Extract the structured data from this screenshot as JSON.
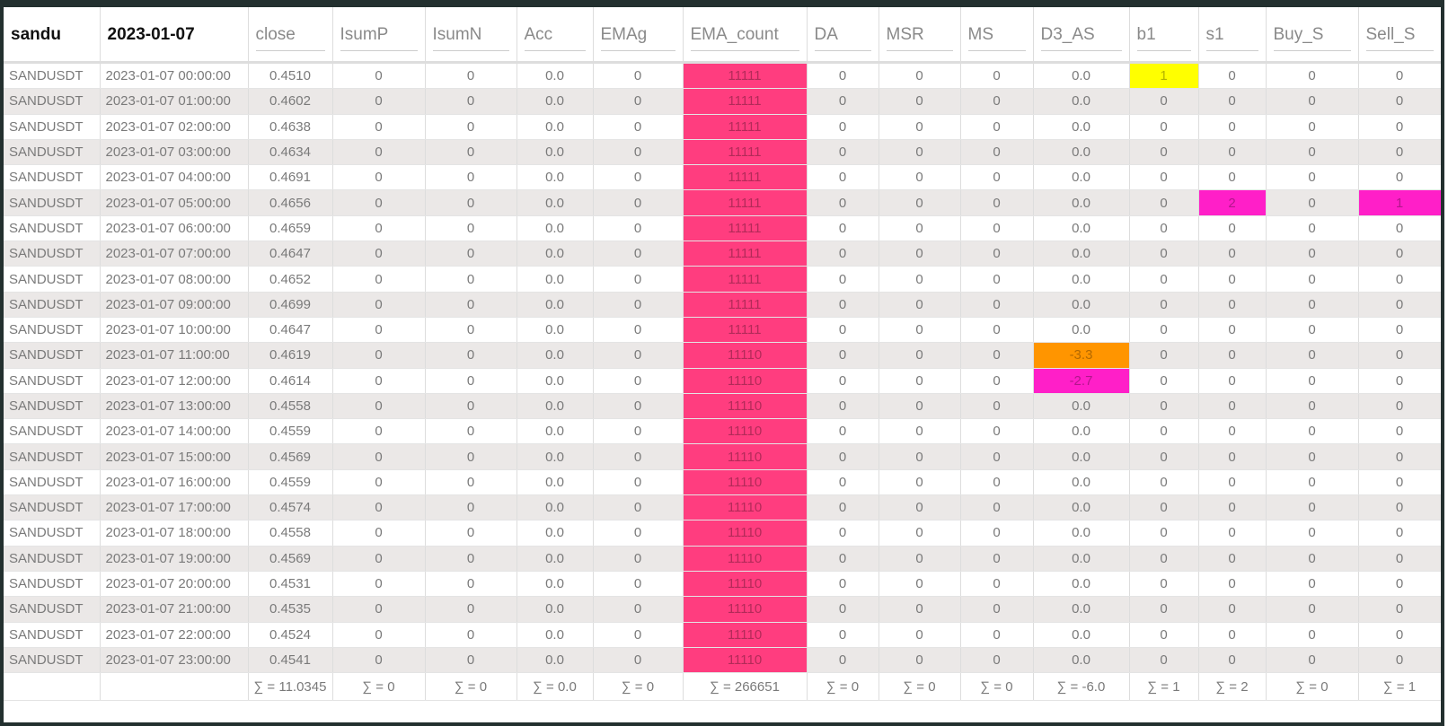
{
  "table": {
    "header": [
      "sandu",
      "2023-01-07",
      "close",
      "IsumP",
      "IsumN",
      "Acc",
      "EMAg",
      "EMA_count",
      "DA",
      "MSR",
      "MS",
      "D3_AS",
      "b1",
      "s1",
      "Buy_S",
      "Sell_S"
    ],
    "rows": [
      [
        "SANDUSDT",
        "2023-01-07 00:00:00",
        "0.4510",
        "0",
        "0",
        "0.0",
        "0",
        "11111",
        "0",
        "0",
        "0",
        "0.0",
        "1",
        "0",
        "0",
        "0"
      ],
      [
        "SANDUSDT",
        "2023-01-07 01:00:00",
        "0.4602",
        "0",
        "0",
        "0.0",
        "0",
        "11111",
        "0",
        "0",
        "0",
        "0.0",
        "0",
        "0",
        "0",
        "0"
      ],
      [
        "SANDUSDT",
        "2023-01-07 02:00:00",
        "0.4638",
        "0",
        "0",
        "0.0",
        "0",
        "11111",
        "0",
        "0",
        "0",
        "0.0",
        "0",
        "0",
        "0",
        "0"
      ],
      [
        "SANDUSDT",
        "2023-01-07 03:00:00",
        "0.4634",
        "0",
        "0",
        "0.0",
        "0",
        "11111",
        "0",
        "0",
        "0",
        "0.0",
        "0",
        "0",
        "0",
        "0"
      ],
      [
        "SANDUSDT",
        "2023-01-07 04:00:00",
        "0.4691",
        "0",
        "0",
        "0.0",
        "0",
        "11111",
        "0",
        "0",
        "0",
        "0.0",
        "0",
        "0",
        "0",
        "0"
      ],
      [
        "SANDUSDT",
        "2023-01-07 05:00:00",
        "0.4656",
        "0",
        "0",
        "0.0",
        "0",
        "11111",
        "0",
        "0",
        "0",
        "0.0",
        "0",
        "2",
        "0",
        "1"
      ],
      [
        "SANDUSDT",
        "2023-01-07 06:00:00",
        "0.4659",
        "0",
        "0",
        "0.0",
        "0",
        "11111",
        "0",
        "0",
        "0",
        "0.0",
        "0",
        "0",
        "0",
        "0"
      ],
      [
        "SANDUSDT",
        "2023-01-07 07:00:00",
        "0.4647",
        "0",
        "0",
        "0.0",
        "0",
        "11111",
        "0",
        "0",
        "0",
        "0.0",
        "0",
        "0",
        "0",
        "0"
      ],
      [
        "SANDUSDT",
        "2023-01-07 08:00:00",
        "0.4652",
        "0",
        "0",
        "0.0",
        "0",
        "11111",
        "0",
        "0",
        "0",
        "0.0",
        "0",
        "0",
        "0",
        "0"
      ],
      [
        "SANDUSDT",
        "2023-01-07 09:00:00",
        "0.4699",
        "0",
        "0",
        "0.0",
        "0",
        "11111",
        "0",
        "0",
        "0",
        "0.0",
        "0",
        "0",
        "0",
        "0"
      ],
      [
        "SANDUSDT",
        "2023-01-07 10:00:00",
        "0.4647",
        "0",
        "0",
        "0.0",
        "0",
        "11111",
        "0",
        "0",
        "0",
        "0.0",
        "0",
        "0",
        "0",
        "0"
      ],
      [
        "SANDUSDT",
        "2023-01-07 11:00:00",
        "0.4619",
        "0",
        "0",
        "0.0",
        "0",
        "11110",
        "0",
        "0",
        "0",
        "-3.3",
        "0",
        "0",
        "0",
        "0"
      ],
      [
        "SANDUSDT",
        "2023-01-07 12:00:00",
        "0.4614",
        "0",
        "0",
        "0.0",
        "0",
        "11110",
        "0",
        "0",
        "0",
        "-2.7",
        "0",
        "0",
        "0",
        "0"
      ],
      [
        "SANDUSDT",
        "2023-01-07 13:00:00",
        "0.4558",
        "0",
        "0",
        "0.0",
        "0",
        "11110",
        "0",
        "0",
        "0",
        "0.0",
        "0",
        "0",
        "0",
        "0"
      ],
      [
        "SANDUSDT",
        "2023-01-07 14:00:00",
        "0.4559",
        "0",
        "0",
        "0.0",
        "0",
        "11110",
        "0",
        "0",
        "0",
        "0.0",
        "0",
        "0",
        "0",
        "0"
      ],
      [
        "SANDUSDT",
        "2023-01-07 15:00:00",
        "0.4569",
        "0",
        "0",
        "0.0",
        "0",
        "11110",
        "0",
        "0",
        "0",
        "0.0",
        "0",
        "0",
        "0",
        "0"
      ],
      [
        "SANDUSDT",
        "2023-01-07 16:00:00",
        "0.4559",
        "0",
        "0",
        "0.0",
        "0",
        "11110",
        "0",
        "0",
        "0",
        "0.0",
        "0",
        "0",
        "0",
        "0"
      ],
      [
        "SANDUSDT",
        "2023-01-07 17:00:00",
        "0.4574",
        "0",
        "0",
        "0.0",
        "0",
        "11110",
        "0",
        "0",
        "0",
        "0.0",
        "0",
        "0",
        "0",
        "0"
      ],
      [
        "SANDUSDT",
        "2023-01-07 18:00:00",
        "0.4558",
        "0",
        "0",
        "0.0",
        "0",
        "11110",
        "0",
        "0",
        "0",
        "0.0",
        "0",
        "0",
        "0",
        "0"
      ],
      [
        "SANDUSDT",
        "2023-01-07 19:00:00",
        "0.4569",
        "0",
        "0",
        "0.0",
        "0",
        "11110",
        "0",
        "0",
        "0",
        "0.0",
        "0",
        "0",
        "0",
        "0"
      ],
      [
        "SANDUSDT",
        "2023-01-07 20:00:00",
        "0.4531",
        "0",
        "0",
        "0.0",
        "0",
        "11110",
        "0",
        "0",
        "0",
        "0.0",
        "0",
        "0",
        "0",
        "0"
      ],
      [
        "SANDUSDT",
        "2023-01-07 21:00:00",
        "0.4535",
        "0",
        "0",
        "0.0",
        "0",
        "11110",
        "0",
        "0",
        "0",
        "0.0",
        "0",
        "0",
        "0",
        "0"
      ],
      [
        "SANDUSDT",
        "2023-01-07 22:00:00",
        "0.4524",
        "0",
        "0",
        "0.0",
        "0",
        "11110",
        "0",
        "0",
        "0",
        "0.0",
        "0",
        "0",
        "0",
        "0"
      ],
      [
        "SANDUSDT",
        "2023-01-07 23:00:00",
        "0.4541",
        "0",
        "0",
        "0.0",
        "0",
        "11110",
        "0",
        "0",
        "0",
        "0.0",
        "0",
        "0",
        "0",
        "0"
      ]
    ],
    "footer": [
      null,
      null,
      "∑ = 11.0345",
      "∑ = 0",
      "∑ = 0",
      "∑ = 0.0",
      "∑ = 0",
      "∑ = 266651",
      "∑ = 0",
      "∑ = 0",
      "∑ = 0",
      "∑ = -6.0",
      "∑ = 1",
      "∑ = 2",
      "∑ = 0",
      "∑ = 1"
    ],
    "column_colors": {
      "7": "#ff3d7f"
    },
    "highlights": [
      {
        "cell": "table.rows.0.12",
        "color": "#ffff00"
      },
      {
        "cell": "table.rows.5.13",
        "color": "#ff1fc8"
      },
      {
        "cell": "table.rows.5.15",
        "color": "#ff1fc8"
      },
      {
        "cell": "table.rows.11.11",
        "color": "#ff9500"
      },
      {
        "cell": "table.rows.12.11",
        "color": "#ff1fc8"
      }
    ]
  }
}
